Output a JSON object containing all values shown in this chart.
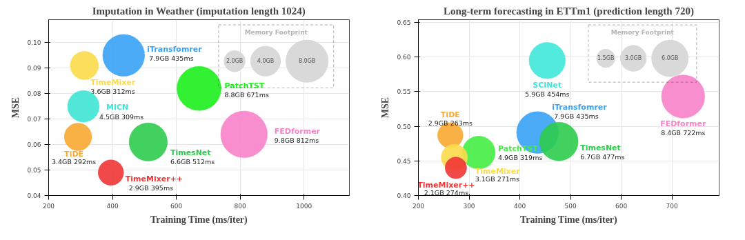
{
  "chart_data": [
    {
      "type": "bubble",
      "title": "Imputation in Weather (imputation length 1024)",
      "xlabel": "Training Time (ms/iter)",
      "ylabel": "MSE",
      "xlim": [
        200,
        1142
      ],
      "ylim": [
        0.04,
        0.109
      ],
      "xticks": [
        200,
        400,
        600,
        800,
        1000
      ],
      "yticks": [
        0.04,
        0.05,
        0.06,
        0.07,
        0.08,
        0.09,
        {
          "value": 0.1,
          "label": "0.10"
        }
      ],
      "grid": true,
      "marker": "circle",
      "legend_title": "Memory Footprint",
      "size_legend": [
        {
          "value": 2,
          "label": "2.0GB"
        },
        {
          "value": 4,
          "label": "4.0GB"
        },
        {
          "value": 8,
          "label": "8.0GB"
        }
      ],
      "series": [
        {
          "name": "iTransfomrer",
          "color": "#37a2f6",
          "x": [
            435
          ],
          "values": [
            0.095
          ],
          "sizes": [
            7.9
          ],
          "value_labels": [
            "7.9GB 435ms"
          ]
        },
        {
          "name": "TimeMixer",
          "color": "#fbdb4a",
          "x": [
            312
          ],
          "values": [
            0.091
          ],
          "sizes": [
            3.6
          ],
          "value_labels": [
            "3.6GB 312ms"
          ]
        },
        {
          "name": "PatchTST",
          "color": "#1cf01c",
          "x": [
            671
          ],
          "values": [
            0.082
          ],
          "sizes": [
            8.8
          ],
          "value_labels": [
            "8.8GB 671ms"
          ]
        },
        {
          "name": "MICN",
          "color": "#3ee6d6",
          "x": [
            309
          ],
          "values": [
            0.075
          ],
          "sizes": [
            4.5
          ],
          "value_labels": [
            "4.5GB 309ms"
          ]
        },
        {
          "name": "FEDformer",
          "color": "#f782c8",
          "x": [
            812
          ],
          "values": [
            0.064
          ],
          "sizes": [
            9.8
          ],
          "value_labels": [
            "9.8GB 812ms"
          ]
        },
        {
          "name": "TiDE",
          "color": "#f8a932",
          "x": [
            292
          ],
          "values": [
            0.063
          ],
          "sizes": [
            3.4
          ],
          "value_labels": [
            "3.4GB 292ms"
          ]
        },
        {
          "name": "TimesNet",
          "color": "#2ecc4c",
          "x": [
            512
          ],
          "values": [
            0.061
          ],
          "sizes": [
            6.6
          ],
          "value_labels": [
            "6.6GB 512ms"
          ]
        },
        {
          "name": "TimeMixer++",
          "color": "#ef3535",
          "x": [
            395
          ],
          "values": [
            0.049
          ],
          "sizes": [
            2.9
          ],
          "value_labels": [
            "2.9GB 395ms"
          ]
        }
      ]
    },
    {
      "type": "bubble",
      "title": "Long-term forecasting in ETTm1 (prediction length 720)",
      "xlabel": "Training Time (ms/iter)",
      "ylabel": "MSE",
      "xlim": [
        200,
        793
      ],
      "ylim": [
        0.4,
        0.654
      ],
      "xticks": [
        200,
        300,
        400,
        500,
        600,
        700
      ],
      "yticks": [
        {
          "value": 0.4,
          "label": "0.40"
        },
        0.45,
        {
          "value": 0.5,
          "label": "0.50"
        },
        0.55,
        {
          "value": 0.6,
          "label": "0.60"
        },
        0.65
      ],
      "grid": true,
      "marker": "circle",
      "legend_title": "Memory Footprint",
      "size_legend": [
        {
          "value": 1.5,
          "label": "1.5GB"
        },
        {
          "value": 3,
          "label": "3.0GB"
        },
        {
          "value": 6,
          "label": "6.0GB"
        }
      ],
      "series": [
        {
          "name": "SCINet",
          "color": "#3ee8d8",
          "x": [
            454
          ],
          "values": [
            0.595
          ],
          "sizes": [
            5.9
          ],
          "value_labels": [
            "5.9GB 454ms"
          ]
        },
        {
          "name": "FEDformer",
          "color": "#f782c8",
          "x": [
            722
          ],
          "values": [
            0.543
          ],
          "sizes": [
            8.4
          ],
          "value_labels": [
            "8.4GB 722ms"
          ]
        },
        {
          "name": "iTransfomrer",
          "color": "#37a2f6",
          "x": [
            435
          ],
          "values": [
            0.491
          ],
          "sizes": [
            7.9
          ],
          "value_labels": [
            "7.9GB 435ms"
          ]
        },
        {
          "name": "TiDE",
          "color": "#f8a932",
          "x": [
            263
          ],
          "values": [
            0.487
          ],
          "sizes": [
            2.9
          ],
          "value_labels": [
            "2.9GB 263ms"
          ]
        },
        {
          "name": "TimesNet",
          "color": "#2ecc4c",
          "x": [
            477
          ],
          "values": [
            0.478
          ],
          "sizes": [
            6.7
          ],
          "value_labels": [
            "6.7GB 477ms"
          ]
        },
        {
          "name": "PatchTST",
          "color": "#44ee44",
          "x": [
            319
          ],
          "values": [
            0.462
          ],
          "sizes": [
            4.9
          ],
          "value_labels": [
            "4.9GB 319ms"
          ]
        },
        {
          "name": "TimeMixer",
          "color": "#fbdb4a",
          "x": [
            271
          ],
          "values": [
            0.455
          ],
          "sizes": [
            3.1
          ],
          "value_labels": [
            "3.1GB 271ms"
          ]
        },
        {
          "name": "TimeMixer++",
          "color": "#ef3535",
          "x": [
            274
          ],
          "values": [
            0.44
          ],
          "sizes": [
            2.1
          ],
          "value_labels": [
            "2.1GB 274ms"
          ]
        }
      ]
    }
  ]
}
